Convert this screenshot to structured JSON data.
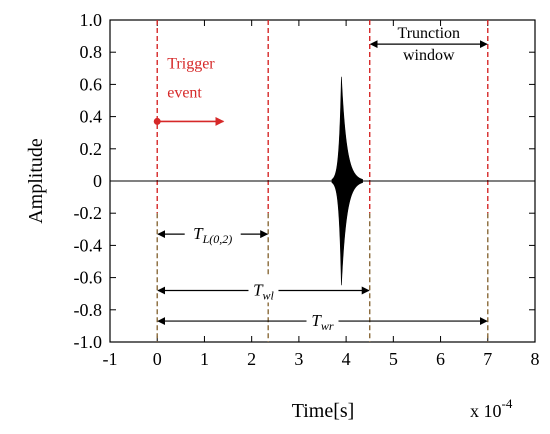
{
  "chart_data": {
    "type": "line",
    "xlabel": "Time[s]",
    "ylabel": "Amplitude",
    "x_multiplier_base": "x 10",
    "x_multiplier_exp": "-4",
    "xlim": [
      -1,
      8
    ],
    "ylim": [
      -1.0,
      1.0
    ],
    "xticks": [
      -1,
      0,
      1,
      2,
      3,
      4,
      5,
      6,
      7,
      8
    ],
    "yticks": [
      1.0,
      0.8,
      0.6,
      0.4,
      0.2,
      0,
      -0.2,
      -0.4,
      -0.6,
      -0.8,
      -1.0
    ],
    "ytick_labels": [
      "1.0",
      "0.8",
      "0.6",
      "0.4",
      "0.2",
      "0",
      "-0.2",
      "-0.4",
      "-0.6",
      "-0.8",
      "-1.0"
    ],
    "grid": false,
    "signal": {
      "center": 3.9,
      "peak_amplitude": 0.65,
      "start": 3.7,
      "end": 4.35,
      "baseline": 0,
      "color": "#000000"
    },
    "vertical_markers": [
      {
        "x": 0,
        "color": "#d62828"
      },
      {
        "x": 2.35,
        "color": "#d62828"
      },
      {
        "x": 4.5,
        "color": "#d62828"
      },
      {
        "x": 7.0,
        "color": "#d62828"
      }
    ],
    "lower_marker_color": "#8a6a3a",
    "annotations": {
      "trigger": {
        "line1": "Trigger",
        "line2": "event",
        "color": "#d62828",
        "dot_x": 0,
        "dot_y": 0.37,
        "arrow_to_x": 1.4
      },
      "truncation": {
        "line1": "Trunction",
        "line2": "window",
        "from_x": 4.5,
        "to_x": 7.0,
        "y": 0.85
      },
      "t_l02": {
        "main": "T",
        "sub": "L(0,2)",
        "from_x": 0,
        "to_x": 2.35,
        "y": -0.33
      },
      "t_wl": {
        "main": "T",
        "sub": "wl",
        "from_x": 0,
        "to_x": 4.5,
        "y": -0.68
      },
      "t_wr": {
        "main": "T",
        "sub": "wr",
        "from_x": 0,
        "to_x": 7.0,
        "y": -0.87
      }
    }
  }
}
